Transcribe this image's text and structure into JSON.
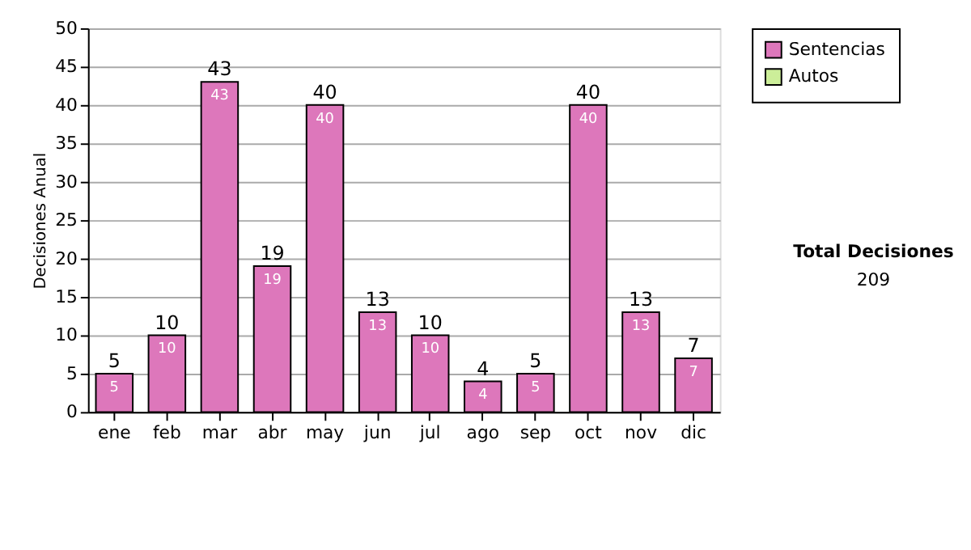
{
  "chart_data": {
    "type": "bar",
    "ylabel": "Decisiones Anual",
    "categories": [
      "ene",
      "feb",
      "mar",
      "abr",
      "may",
      "jun",
      "jul",
      "ago",
      "sep",
      "oct",
      "nov",
      "dic"
    ],
    "series": [
      {
        "name": "Sentencias",
        "color": "#dd77bb",
        "values": [
          5,
          10,
          43,
          19,
          40,
          13,
          10,
          4,
          5,
          40,
          13,
          7
        ]
      },
      {
        "name": "Autos",
        "color": "#ccee99",
        "values": [
          null,
          null,
          null,
          null,
          null,
          null,
          null,
          null,
          null,
          null,
          null,
          null
        ]
      }
    ],
    "totals": [
      "5",
      "10",
      "43",
      "19",
      "40",
      "13",
      "10",
      "4",
      "5",
      "40",
      "13",
      "7"
    ],
    "data_labels": true,
    "ylim": [
      0,
      50
    ],
    "yticks": [
      0,
      5,
      10,
      15,
      20,
      25,
      30,
      35,
      40,
      45,
      50
    ],
    "grid": "y",
    "legend": "right",
    "annotations": [
      "Total Decisiones",
      "209"
    ]
  }
}
